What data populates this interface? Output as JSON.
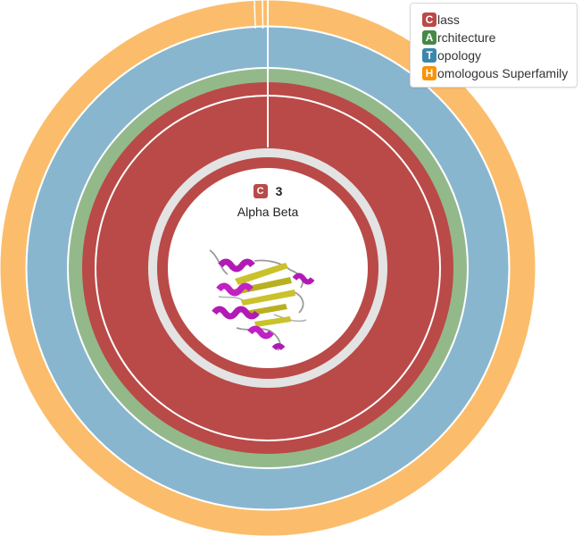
{
  "legend": {
    "items": [
      {
        "letter": "C",
        "label": "lass",
        "color": "#b94a48"
      },
      {
        "letter": "A",
        "label": "rchitecture",
        "color": "#468847"
      },
      {
        "letter": "T",
        "label": "opology",
        "color": "#3a87ad"
      },
      {
        "letter": "H",
        "label": "omologous Superfamily",
        "color": "#f89406"
      }
    ]
  },
  "center": {
    "letter": "C",
    "badge_color": "#b94a48",
    "number": "3",
    "name": "Alpha Beta"
  },
  "rings": {
    "class_color": "#b94a48",
    "architecture_color": "#93b98b",
    "topology_color": "#89b6cf",
    "superfamily_color": "#fbbd6b",
    "inner_ring_color": "#e3e3e3"
  }
}
